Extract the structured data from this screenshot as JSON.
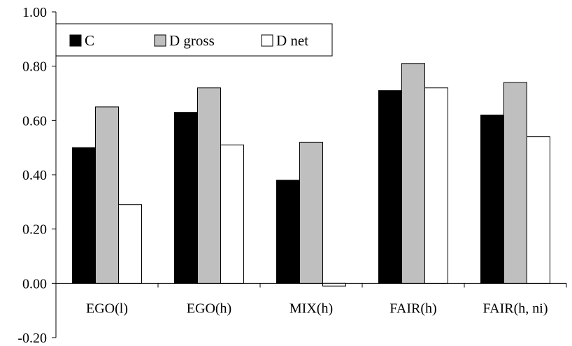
{
  "chart_data": {
    "type": "bar",
    "title": "",
    "xlabel": "",
    "ylabel": "",
    "categories": [
      "EGO(l)",
      "EGO(h)",
      "MIX(h)",
      "FAIR(h)",
      "FAIR(h, ni)"
    ],
    "series": [
      {
        "name": "C",
        "color": "#000000",
        "values": [
          0.5,
          0.63,
          0.38,
          0.71,
          0.62
        ]
      },
      {
        "name": "D gross",
        "color": "#bfbfbf",
        "values": [
          0.65,
          0.72,
          0.52,
          0.81,
          0.74
        ]
      },
      {
        "name": "D net",
        "color": "#ffffff",
        "values": [
          0.29,
          0.51,
          -0.01,
          0.72,
          0.54
        ]
      }
    ],
    "ylim": [
      -0.2,
      1.0
    ],
    "yticks": [
      -0.2,
      0.0,
      0.2,
      0.4,
      0.6,
      0.8,
      1.0
    ],
    "ytick_labels": [
      "-0.20",
      "0.00",
      "0.20",
      "0.40",
      "0.60",
      "0.80",
      "1.00"
    ],
    "grid": false,
    "legend": {
      "position": "top-left",
      "entries": [
        "C",
        "D gross",
        "D net"
      ]
    }
  }
}
